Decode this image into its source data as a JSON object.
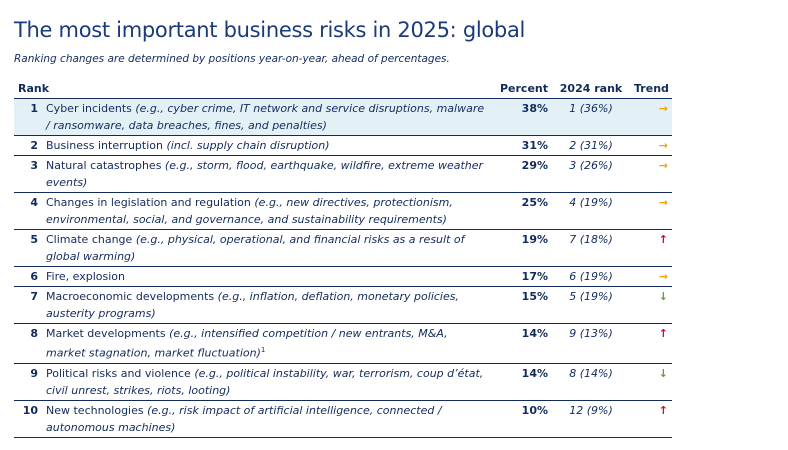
{
  "header": {
    "title": "The most important business risks in 2025: global",
    "subtitle": "Ranking changes are determined by positions year-on-year, ahead of percentages."
  },
  "table": {
    "columns": [
      "Rank",
      "Percent",
      "2024 rank",
      "Trend"
    ],
    "rows": [
      {
        "rank": "1",
        "risk": "Cyber incidents",
        "detail": "(e.g., cyber crime, IT network and service disruptions, malware / ransomware, data breaches, fines, and penalties)",
        "percent": "38%",
        "prev": "1 (36%)",
        "trend": "→"
      },
      {
        "rank": "2",
        "risk": "Business interruption",
        "detail": "(incl. supply chain disruption)",
        "percent": "31%",
        "prev": "2 (31%)",
        "trend": "→"
      },
      {
        "rank": "3",
        "risk": "Natural catastrophes",
        "detail": "(e.g., storm, flood, earthquake, wildfire, extreme weather events)",
        "percent": "29%",
        "prev": "3 (26%)",
        "trend": "→"
      },
      {
        "rank": "4",
        "risk": "Changes in legislation and regulation",
        "detail": "(e.g., new directives, protectionism, environmental, social, and governance, and sustainability requirements)",
        "percent": "25%",
        "prev": "4 (19%)",
        "trend": "→"
      },
      {
        "rank": "5",
        "risk": "Climate change",
        "detail": "(e.g., physical, operational, and financial risks as a result of global warming)",
        "percent": "19%",
        "prev": "7 (18%)",
        "trend": "↑"
      },
      {
        "rank": "6",
        "risk": "Fire, explosion",
        "percent": "17%",
        "prev": "6 (19%)",
        "trend": "→"
      },
      {
        "rank": "7",
        "risk": "Macroeconomic developments",
        "detail": "(e.g., inflation, deflation, monetary policies, austerity programs)",
        "percent": "15%",
        "prev": "5 (19%)",
        "trend": "↓"
      },
      {
        "rank": "8",
        "risk": "Market developments",
        "detail": "(e.g., intensified competition / new entrants, M&A, market stagnation, market fluctuation)",
        "footnote": "1",
        "percent": "14%",
        "prev": "9 (13%)",
        "trend": "↑"
      },
      {
        "rank": "9",
        "risk": "Political risks and violence",
        "detail": "(e.g., political instability, war, terrorism, coup d’état, civil unrest, strikes, riots, looting)",
        "percent": "14%",
        "prev": "8 (14%)",
        "trend": "↓"
      },
      {
        "rank": "10",
        "risk": "New technologies",
        "detail": "(e.g., risk impact of artificial intelligence, connected / autonomous machines)",
        "percent": "10%",
        "prev": "12 (9%)",
        "trend": "↑"
      }
    ]
  }
}
